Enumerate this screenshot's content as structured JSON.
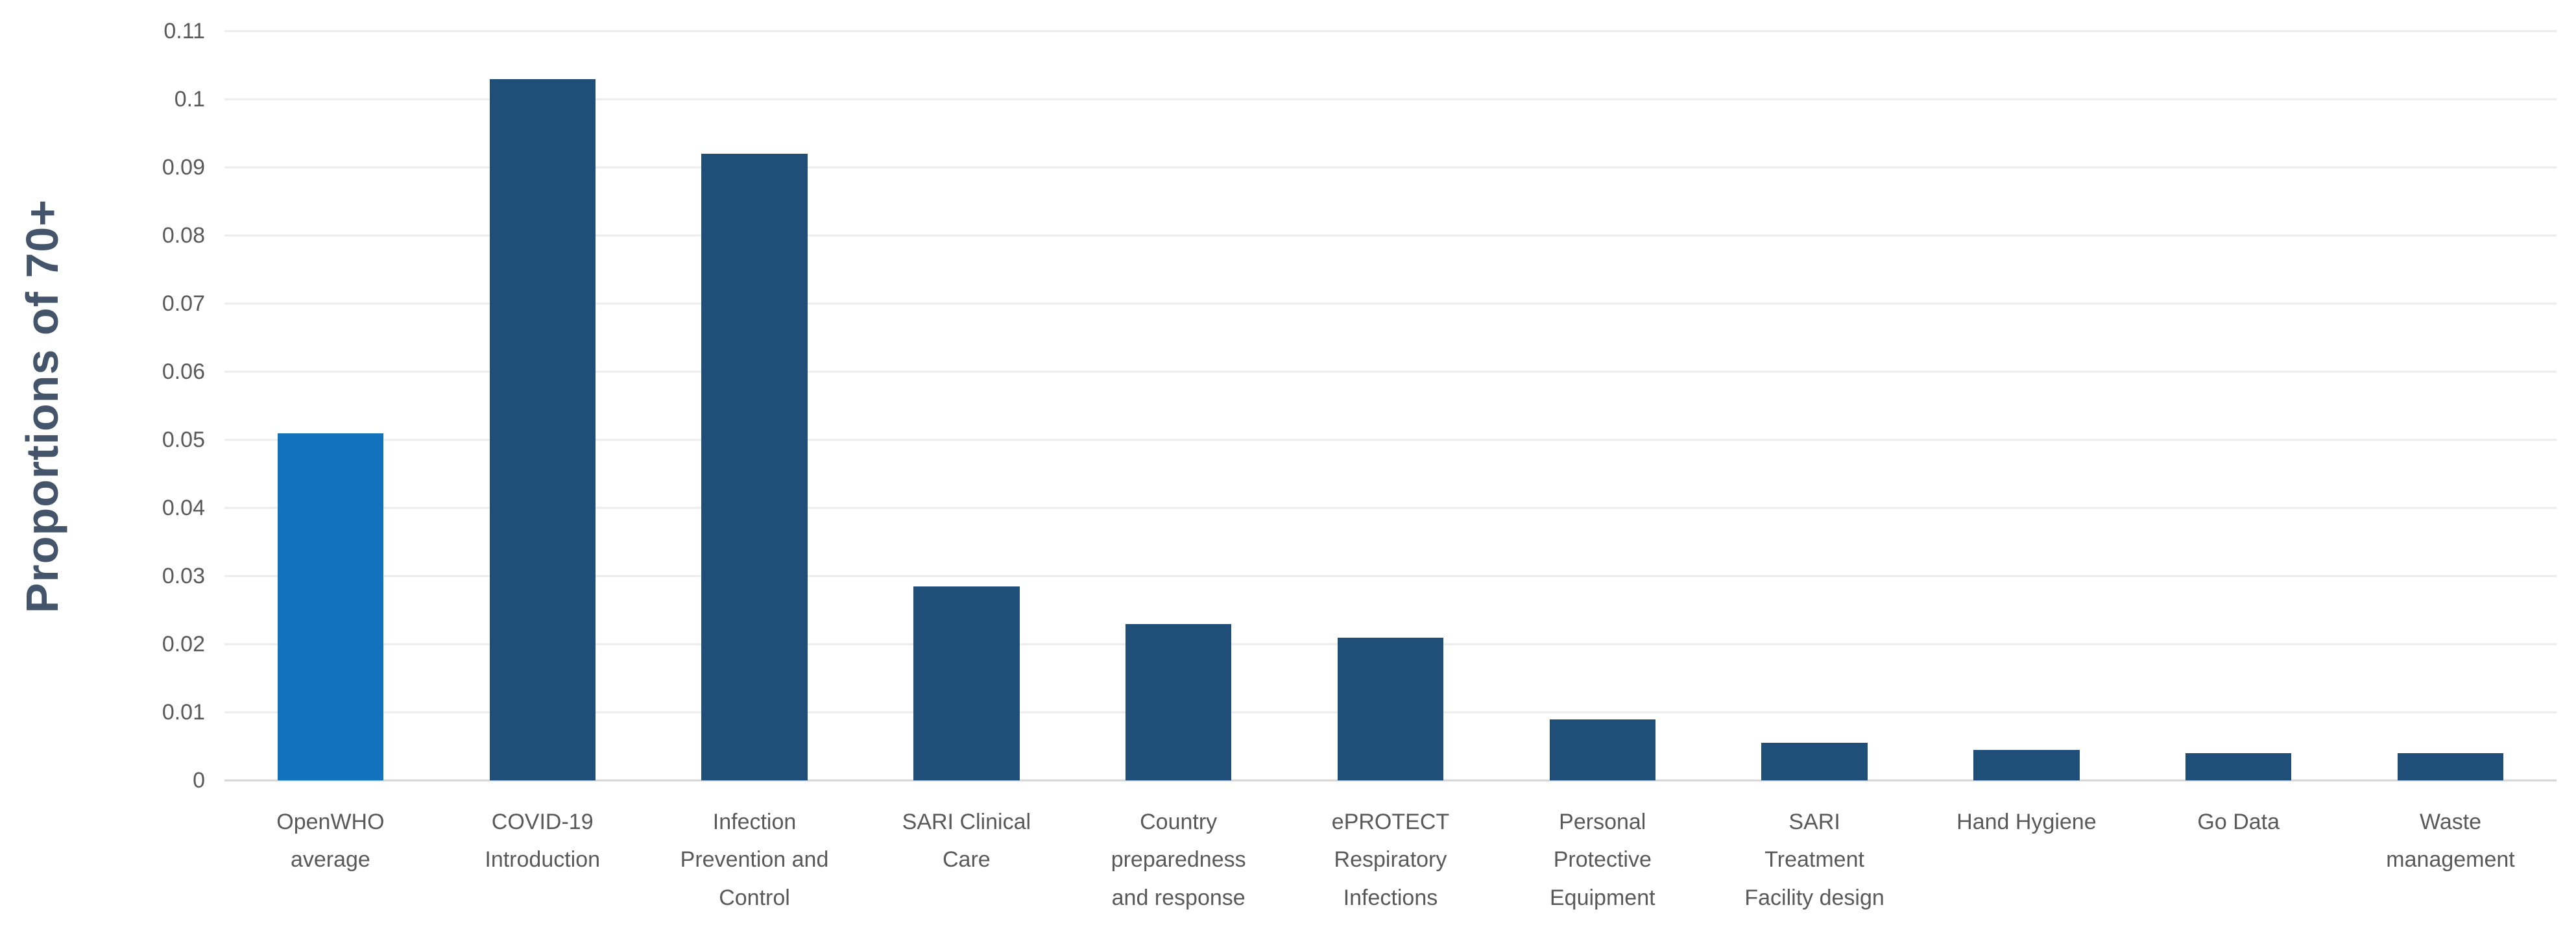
{
  "chart_data": {
    "type": "bar",
    "title": "",
    "ylabel": "Proportions of 70+",
    "xlabel": "",
    "ylim": [
      0,
      0.11
    ],
    "yticks": [
      "0",
      "0.01",
      "0.02",
      "0.03",
      "0.04",
      "0.05",
      "0.06",
      "0.07",
      "0.08",
      "0.09",
      "0.1",
      "0.11"
    ],
    "grid": "horizontal-gridlines-on",
    "legend": "none",
    "categories": [
      "OpenWHO average",
      "COVID-19 Introduction",
      "Infection Prevention and Control",
      "SARI Clinical Care",
      "Country preparedness and response",
      "ePROTECT Respiratory Infections",
      "Personal Protective Equipment",
      "SARI Treatment Facility design",
      "Hand Hygiene",
      "Go Data",
      "Waste management"
    ],
    "values": [
      0.051,
      0.103,
      0.092,
      0.0285,
      0.023,
      0.021,
      0.009,
      0.0055,
      0.0045,
      0.004,
      0.004
    ],
    "label_lines": [
      [
        "OpenWHO",
        "average"
      ],
      [
        "COVID-19",
        "Introduction"
      ],
      [
        "Infection",
        "Prevention and",
        "Control"
      ],
      [
        "SARI Clinical",
        "Care"
      ],
      [
        "Country",
        "preparedness",
        "and response"
      ],
      [
        "ePROTECT",
        "Respiratory",
        "Infections"
      ],
      [
        "Personal",
        "Protective",
        "Equipment"
      ],
      [
        "SARI",
        "Treatment",
        "Facility design"
      ],
      [
        "Hand Hygiene"
      ],
      [
        "Go Data"
      ],
      [
        "Waste",
        "management"
      ]
    ],
    "highlight_index": 0,
    "colors": {
      "highlight_bar": "#1272BC",
      "default_bar": "#1F4E79",
      "gridline": "#ECECEC",
      "axis_line": "#D6D6D6",
      "tick_text": "#595959",
      "category_text": "#595959",
      "axis_title_text": "#44546A"
    }
  }
}
